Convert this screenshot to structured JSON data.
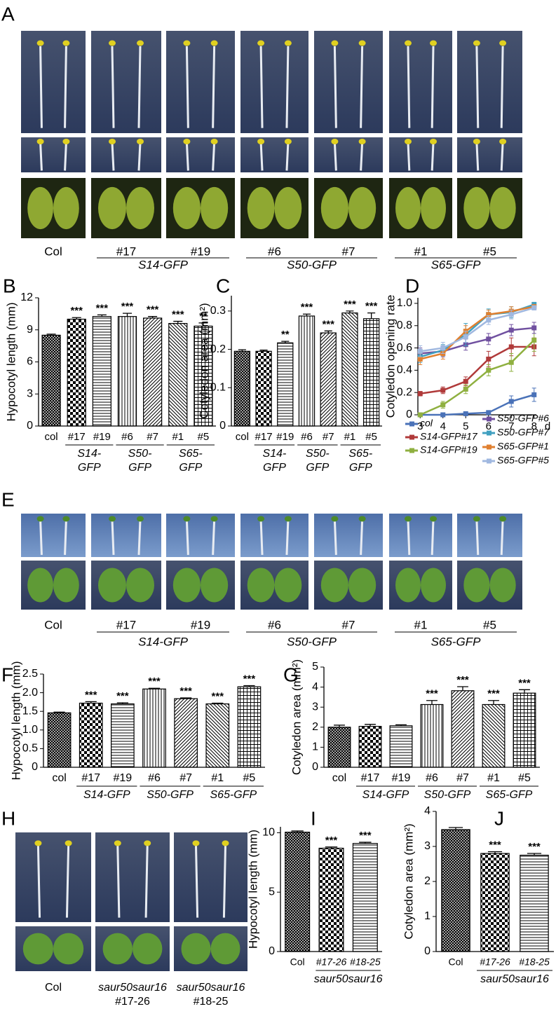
{
  "panel_letters": [
    "A",
    "B",
    "C",
    "D",
    "E",
    "F",
    "G",
    "H",
    "I",
    "J"
  ],
  "images": {
    "A": {
      "labels": [
        "Col",
        "#17",
        "#19",
        "#6",
        "#7",
        "#1",
        "#5"
      ],
      "groups": [
        "S14-GFP",
        "S50-GFP",
        "S65-GFP"
      ]
    },
    "E": {
      "labels": [
        "Col",
        "#17",
        "#19",
        "#6",
        "#7",
        "#1",
        "#5"
      ],
      "groups": [
        "S14-GFP",
        "S50-GFP",
        "S65-GFP"
      ]
    },
    "H": {
      "labels": [
        [
          "Col"
        ],
        [
          "saur50saur16",
          "#17-26"
        ],
        [
          "saur50saur16",
          "#18-25"
        ]
      ]
    }
  },
  "chart_data": [
    {
      "type": "bar",
      "ylabel": "Hypocotyl length (mm)",
      "categories": [
        "col",
        "#17",
        "#19",
        "#6",
        "#7",
        "#1",
        "#5"
      ],
      "groups": [
        [
          "S14-",
          "GFP"
        ],
        [
          "S50-",
          "GFP"
        ],
        [
          "S65-",
          "GFP"
        ]
      ],
      "values": [
        8.5,
        10.0,
        10.25,
        10.25,
        10.1,
        9.6,
        9.35
      ],
      "errors": [
        0.1,
        0.15,
        0.15,
        0.3,
        0.15,
        0.2,
        0.3
      ],
      "annotations": [
        null,
        "***",
        "***",
        "***",
        "***",
        "***",
        "**"
      ],
      "patterns": [
        "crosshatch",
        "checker",
        "hlines",
        "vlines",
        "diag",
        "antidiag",
        "grid"
      ],
      "ylim": [
        0,
        12
      ],
      "yticks": [
        0,
        3,
        6,
        9,
        12
      ]
    },
    {
      "type": "bar",
      "ylabel": "Cotyledon area (mm²)",
      "categories": [
        "col",
        "#17",
        "#19",
        "#6",
        "#7",
        "#1",
        "#5"
      ],
      "groups": [
        [
          "S14-",
          "GFP"
        ],
        [
          "S50-",
          "GFP"
        ],
        [
          "S65-",
          "GFP"
        ]
      ],
      "values": [
        0.195,
        0.195,
        0.217,
        0.287,
        0.243,
        0.295,
        0.28
      ],
      "errors": [
        0.004,
        0.003,
        0.004,
        0.005,
        0.005,
        0.005,
        0.015
      ],
      "annotations": [
        null,
        null,
        "**",
        "***",
        "***",
        "***",
        "***"
      ],
      "patterns": [
        "crosshatch",
        "checker",
        "hlines",
        "vlines",
        "diag",
        "antidiag",
        "grid"
      ],
      "ylim": [
        0,
        0.34
      ],
      "yticks": [
        0,
        0.1,
        0.2,
        0.3
      ]
    },
    {
      "type": "line",
      "ylabel": "Cotyledon opening rate",
      "xlabel": "d",
      "x": [
        3,
        4,
        5,
        6,
        7,
        8
      ],
      "xlim": [
        2.9,
        8.1
      ],
      "xticks": [
        3,
        4,
        5,
        6,
        7,
        8
      ],
      "ylim": [
        0,
        1.05
      ],
      "yticks": [
        0,
        0.2,
        0.4,
        0.6,
        0.8,
        {
          "value": 1,
          "label": "1.0"
        }
      ],
      "series": [
        {
          "name": "col",
          "color": "#4a72b8",
          "values": [
            0,
            0,
            0.01,
            0.02,
            0.12,
            0.18
          ],
          "errors": [
            0,
            0,
            0,
            0,
            0.05,
            0.06
          ]
        },
        {
          "name": "S14-GFP#17",
          "color": "#b03a3a",
          "values": [
            0.19,
            0.22,
            0.3,
            0.5,
            0.61,
            0.61
          ],
          "errors": [
            0.02,
            0.03,
            0.04,
            0.07,
            0.08,
            0.08
          ]
        },
        {
          "name": "S14-GFP#19",
          "color": "#8fb040",
          "values": [
            0,
            0.09,
            0.23,
            0.4,
            0.47,
            0.67
          ],
          "errors": [
            0,
            0.03,
            0.04,
            0.05,
            0.08,
            0.1
          ]
        },
        {
          "name": "S50-GFP#6",
          "color": "#7050a0",
          "values": [
            0.55,
            0.57,
            0.63,
            0.68,
            0.76,
            0.78
          ],
          "errors": [
            0.05,
            0.05,
            0.05,
            0.05,
            0.05,
            0.05
          ]
        },
        {
          "name": "S50-GFP#7",
          "color": "#40a0c0",
          "values": [
            0.52,
            0.58,
            0.72,
            0.9,
            0.92,
            0.99
          ],
          "errors": [
            0.05,
            0.05,
            0.1,
            0.05,
            0.05,
            0.02
          ]
        },
        {
          "name": "S65-GFP#1",
          "color": "#e08030",
          "values": [
            0.5,
            0.55,
            0.75,
            0.9,
            0.93,
            0.97
          ],
          "errors": [
            0.05,
            0.05,
            0.05,
            0.04,
            0.04,
            0.02
          ]
        },
        {
          "name": "S65-GFP#5",
          "color": "#a0b8e0",
          "values": [
            0.57,
            0.6,
            0.7,
            0.85,
            0.9,
            0.96
          ],
          "errors": [
            0.05,
            0.05,
            0.05,
            0.04,
            0.04,
            0.02
          ]
        }
      ]
    },
    {
      "type": "bar",
      "ylabel": "Hypocotyl length (mm)",
      "categories": [
        "col",
        "#17",
        "#19",
        "#6",
        "#7",
        "#1",
        "#5"
      ],
      "groups": [
        [
          "S14-GFP"
        ],
        [
          "S50-GFP"
        ],
        [
          "S65-GFP"
        ]
      ],
      "values": [
        1.46,
        1.72,
        1.7,
        2.1,
        1.84,
        1.7,
        2.16
      ],
      "errors": [
        0.02,
        0.04,
        0.03,
        0.02,
        0.02,
        0.02,
        0.03
      ],
      "annotations": [
        null,
        "***",
        "***",
        "***",
        "***",
        "***",
        "***"
      ],
      "patterns": [
        "crosshatch",
        "checker",
        "hlines",
        "vlines",
        "diag",
        "antidiag",
        "grid"
      ],
      "ylim": [
        0,
        2.5
      ],
      "yticks": [
        0,
        0.5,
        {
          "value": 1,
          "label": "1.0"
        },
        1.5,
        {
          "value": 2,
          "label": "2.0"
        },
        2.5
      ]
    },
    {
      "type": "bar",
      "ylabel": "Cotyledon area (mm²)",
      "categories": [
        "col",
        "#17",
        "#19",
        "#6",
        "#7",
        "#1",
        "#5"
      ],
      "groups": [
        [
          "S14-GFP"
        ],
        [
          "S50-GFP"
        ],
        [
          "S65-GFP"
        ]
      ],
      "values": [
        2.0,
        2.04,
        2.07,
        3.13,
        3.82,
        3.13,
        3.7
      ],
      "errors": [
        0.1,
        0.1,
        0.05,
        0.2,
        0.2,
        0.2,
        0.17
      ],
      "annotations": [
        null,
        null,
        null,
        "***",
        "***",
        "***",
        "***"
      ],
      "patterns": [
        "crosshatch",
        "checker",
        "hlines",
        "vlines",
        "diag",
        "antidiag",
        "grid"
      ],
      "ylim": [
        0,
        5
      ],
      "yticks": [
        0,
        1,
        2,
        3,
        4,
        5
      ]
    },
    {
      "type": "bar",
      "ylabel": "Hypocotyl length (mm)",
      "categories": [
        "Col",
        "#17-26",
        "#18-25"
      ],
      "groups": [
        [
          "saur50saur16"
        ]
      ],
      "values": [
        10.05,
        8.7,
        9.1
      ],
      "errors": [
        0.1,
        0.1,
        0.1
      ],
      "annotations": [
        null,
        "***",
        "***"
      ],
      "patterns": [
        "crosshatch",
        "checker",
        "hlines"
      ],
      "ylim": [
        0,
        10.5
      ],
      "yticks": [
        0,
        5,
        10
      ]
    },
    {
      "type": "bar",
      "ylabel": "Cotyledon area (mm²)",
      "categories": [
        "Col",
        "#17-26",
        "#18-25"
      ],
      "groups": [
        [
          "saur50saur16"
        ]
      ],
      "values": [
        3.48,
        2.8,
        2.75
      ],
      "errors": [
        0.06,
        0.05,
        0.05
      ],
      "annotations": [
        null,
        "***",
        "***"
      ],
      "patterns": [
        "crosshatch",
        "checker",
        "hlines"
      ],
      "ylim": [
        0,
        4
      ],
      "yticks": [
        0,
        1,
        2,
        3,
        4
      ]
    }
  ]
}
